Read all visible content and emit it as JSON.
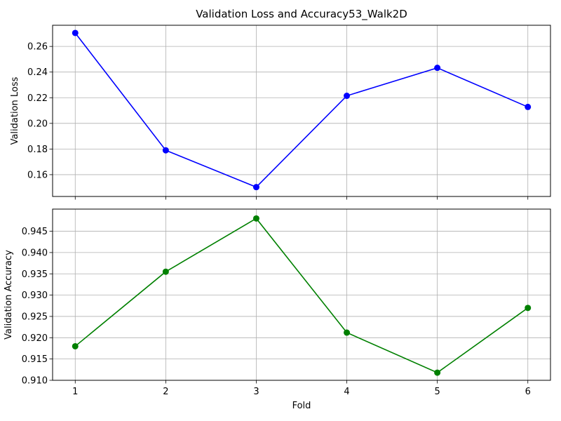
{
  "chart_data": [
    {
      "type": "line",
      "title": "Validation Loss and Accuracy53_Walk2D",
      "xlabel": "",
      "ylabel": "Validation Loss",
      "x": [
        1,
        2,
        3,
        4,
        5,
        6
      ],
      "series": [
        {
          "name": "Validation Loss",
          "color": "#0000ff",
          "marker": "circle",
          "values": [
            0.2705,
            0.179,
            0.1503,
            0.2215,
            0.2433,
            0.2128
          ]
        }
      ],
      "xlim": [
        0.75,
        6.25
      ],
      "ylim": [
        0.143,
        0.2765
      ],
      "yticks": [
        0.16,
        0.18,
        0.2,
        0.22,
        0.24,
        0.26
      ],
      "ytick_labels": [
        "0.16",
        "0.18",
        "0.20",
        "0.22",
        "0.24",
        "0.26"
      ],
      "xtick_labels": [],
      "grid": true
    },
    {
      "type": "line",
      "title": "",
      "xlabel": "Fold",
      "ylabel": "Validation Accuracy",
      "x": [
        1,
        2,
        3,
        4,
        5,
        6
      ],
      "series": [
        {
          "name": "Validation Accuracy",
          "color": "#008000",
          "marker": "circle",
          "values": [
            0.918,
            0.9355,
            0.948,
            0.9212,
            0.9118,
            0.927
          ]
        }
      ],
      "xlim": [
        0.75,
        6.25
      ],
      "ylim": [
        0.91,
        0.9502
      ],
      "yticks": [
        0.91,
        0.915,
        0.92,
        0.925,
        0.93,
        0.935,
        0.94,
        0.945
      ],
      "ytick_labels": [
        "0.910",
        "0.915",
        "0.920",
        "0.925",
        "0.930",
        "0.935",
        "0.940",
        "0.945"
      ],
      "xticks": [
        1,
        2,
        3,
        4,
        5,
        6
      ],
      "xtick_labels": [
        "1",
        "2",
        "3",
        "4",
        "5",
        "6"
      ],
      "grid": true
    }
  ]
}
